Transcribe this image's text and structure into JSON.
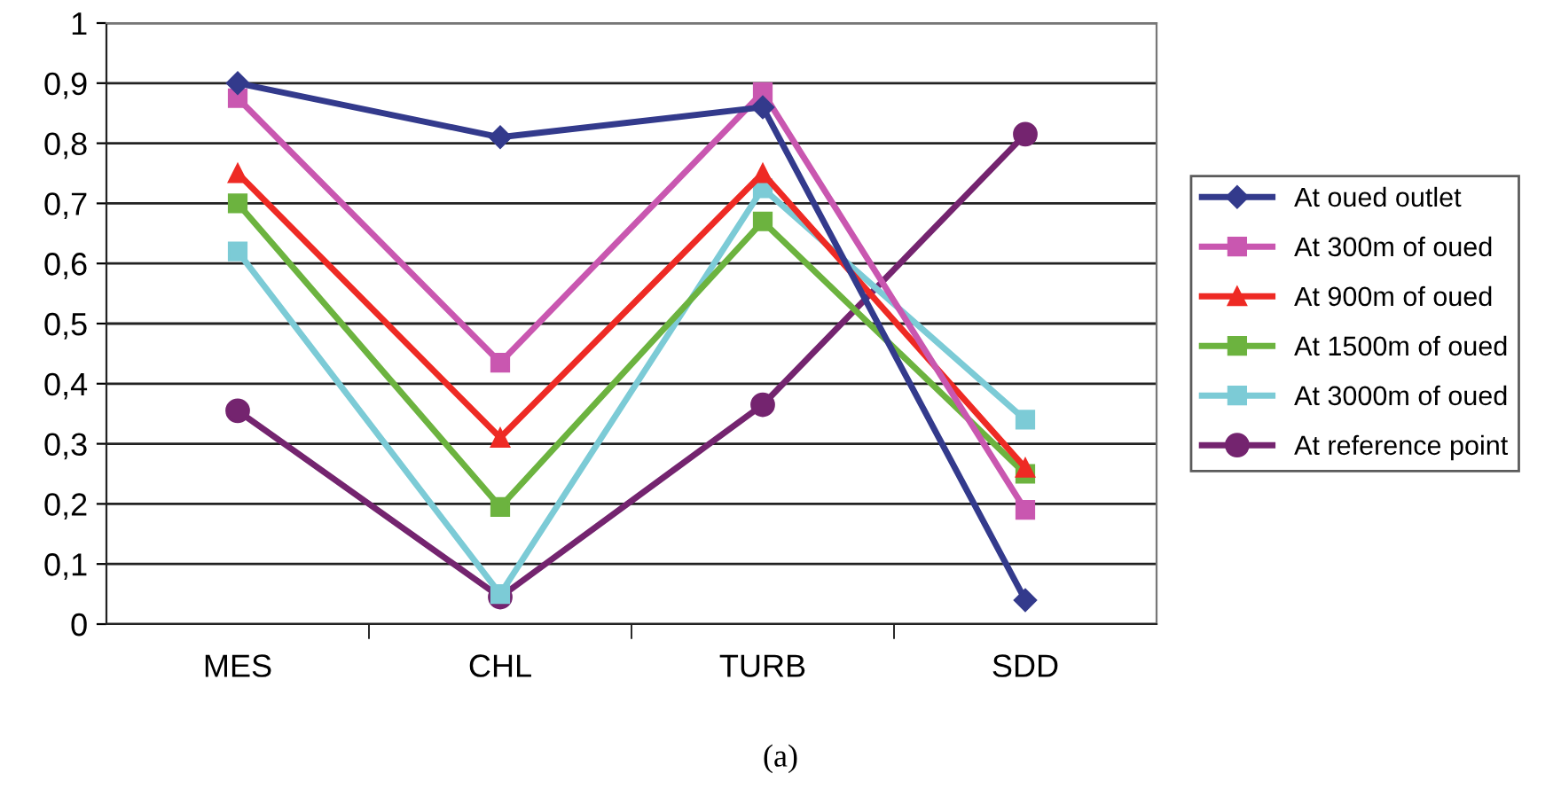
{
  "chart_data": {
    "type": "line",
    "categories": [
      "MES",
      "CHL",
      "TURB",
      "SDD"
    ],
    "series": [
      {
        "name": "At oued outlet",
        "color": "#333a8c",
        "marker": "diamond",
        "values": [
          0.9,
          0.81,
          0.86,
          0.04
        ]
      },
      {
        "name": "At 300m of oued",
        "color": "#c957b0",
        "marker": "square",
        "values": [
          0.875,
          0.435,
          0.885,
          0.19
        ]
      },
      {
        "name": "At 900m of oued",
        "color": "#ee2a24",
        "marker": "triangle",
        "values": [
          0.75,
          0.31,
          0.75,
          0.26
        ]
      },
      {
        "name": "At 1500m of oued",
        "color": "#6cb33f",
        "marker": "square",
        "values": [
          0.7,
          0.195,
          0.67,
          0.25
        ]
      },
      {
        "name": "At 3000m of oued",
        "color": "#7ccbd6",
        "marker": "square",
        "values": [
          0.62,
          0.05,
          0.725,
          0.34
        ]
      },
      {
        "name": "At reference point",
        "color": "#74246f",
        "marker": "circle",
        "values": [
          0.355,
          0.045,
          0.365,
          0.815
        ]
      }
    ],
    "ylim": [
      0,
      1
    ],
    "yticks": [
      0,
      {
        "value": 0.1,
        "label": "0,1"
      },
      {
        "value": 0.2,
        "label": "0,2"
      },
      {
        "value": 0.3,
        "label": "0,3"
      },
      {
        "value": 0.4,
        "label": "0,4"
      },
      {
        "value": 0.5,
        "label": "0,5"
      },
      {
        "value": 0.6,
        "label": "0,6"
      },
      {
        "value": 0.7,
        "label": "0,7"
      },
      {
        "value": 0.8,
        "label": "0,8"
      },
      {
        "value": 0.9,
        "label": "0,9"
      },
      1
    ],
    "grid": "y",
    "legend": "right",
    "line_style": "solid",
    "annotations": [
      "(a)"
    ]
  }
}
